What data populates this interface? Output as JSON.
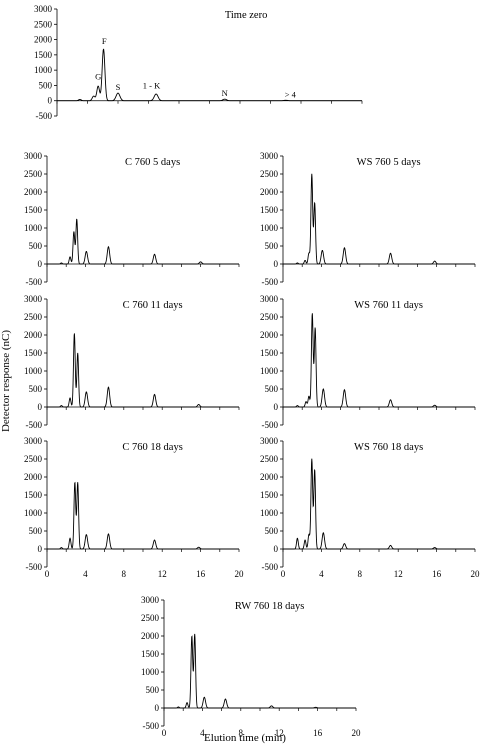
{
  "figure": {
    "ylabel": "Detector response (nC)",
    "xlabel": "Elution time (min)"
  },
  "chart_data": [
    {
      "type": "line",
      "title": "Time zero",
      "xlim": [
        0,
        20
      ],
      "ylim": [
        -500,
        3000
      ],
      "yticks": [
        3000,
        2500,
        2000,
        1500,
        1000,
        500,
        0,
        -500
      ],
      "xticks": [],
      "annotations": [
        {
          "text": "G",
          "x": 2.7,
          "y": 700
        },
        {
          "text": "F",
          "x": 3.1,
          "y": 1850
        },
        {
          "text": "S",
          "x": 4.0,
          "y": 350
        },
        {
          "text": "1 - K",
          "x": 6.2,
          "y": 400
        },
        {
          "text": "N",
          "x": 11.0,
          "y": 160
        },
        {
          "text": "> 4",
          "x": 15.3,
          "y": 100
        }
      ],
      "peaks": [
        {
          "x": 1.5,
          "y": 40
        },
        {
          "x": 2.4,
          "y": 150
        },
        {
          "x": 2.7,
          "y": 480
        },
        {
          "x": 3.05,
          "y": 1700
        },
        {
          "x": 4.0,
          "y": 250
        },
        {
          "x": 6.5,
          "y": 220
        },
        {
          "x": 11.0,
          "y": 50
        },
        {
          "x": 15.0,
          "y": 15
        }
      ]
    },
    {
      "type": "line",
      "title": "C 760 5 days",
      "xlim": [
        0,
        20
      ],
      "ylim": [
        -500,
        3000
      ],
      "yticks": [
        3000,
        2500,
        2000,
        1500,
        1000,
        500,
        0,
        -500
      ],
      "xticks": [],
      "peaks": [
        {
          "x": 1.5,
          "y": 30
        },
        {
          "x": 2.4,
          "y": 200
        },
        {
          "x": 2.8,
          "y": 900
        },
        {
          "x": 3.1,
          "y": 1250
        },
        {
          "x": 4.1,
          "y": 350
        },
        {
          "x": 6.4,
          "y": 480
        },
        {
          "x": 11.2,
          "y": 270
        },
        {
          "x": 16.0,
          "y": 60
        }
      ]
    },
    {
      "type": "line",
      "title": "WS 760 5 days",
      "xlim": [
        0,
        20
      ],
      "ylim": [
        -500,
        3000
      ],
      "yticks": [
        3000,
        2500,
        2000,
        1500,
        1000,
        500,
        0,
        -500
      ],
      "xticks": [],
      "peaks": [
        {
          "x": 1.5,
          "y": 30
        },
        {
          "x": 2.3,
          "y": 100
        },
        {
          "x": 2.7,
          "y": 300
        },
        {
          "x": 3.0,
          "y": 2500
        },
        {
          "x": 3.3,
          "y": 1700
        },
        {
          "x": 4.1,
          "y": 380
        },
        {
          "x": 6.4,
          "y": 450
        },
        {
          "x": 11.2,
          "y": 300
        },
        {
          "x": 15.8,
          "y": 80
        }
      ]
    },
    {
      "type": "line",
      "title": "C 760 11 days",
      "xlim": [
        0,
        20
      ],
      "ylim": [
        -500,
        3000
      ],
      "yticks": [
        3000,
        2500,
        2000,
        1500,
        1000,
        500,
        0,
        -500
      ],
      "xticks": [],
      "peaks": [
        {
          "x": 1.5,
          "y": 40
        },
        {
          "x": 2.4,
          "y": 250
        },
        {
          "x": 2.85,
          "y": 2050
        },
        {
          "x": 3.2,
          "y": 1500
        },
        {
          "x": 4.1,
          "y": 420
        },
        {
          "x": 6.4,
          "y": 550
        },
        {
          "x": 11.2,
          "y": 350
        },
        {
          "x": 15.8,
          "y": 70
        }
      ]
    },
    {
      "type": "line",
      "title": "WS 760 11 days",
      "xlim": [
        0,
        20
      ],
      "ylim": [
        -500,
        3000
      ],
      "yticks": [
        3000,
        2500,
        2000,
        1500,
        1000,
        500,
        0,
        -500
      ],
      "xticks": [],
      "peaks": [
        {
          "x": 1.5,
          "y": 40
        },
        {
          "x": 2.4,
          "y": 150
        },
        {
          "x": 2.7,
          "y": 300
        },
        {
          "x": 3.05,
          "y": 2600
        },
        {
          "x": 3.35,
          "y": 2200
        },
        {
          "x": 4.2,
          "y": 500
        },
        {
          "x": 6.4,
          "y": 480
        },
        {
          "x": 11.2,
          "y": 200
        },
        {
          "x": 15.8,
          "y": 50
        }
      ]
    },
    {
      "type": "line",
      "title": "C 760 18 days",
      "xlim": [
        0,
        20
      ],
      "ylim": [
        -500,
        3000
      ],
      "yticks": [
        3000,
        2500,
        2000,
        1500,
        1000,
        500,
        0,
        -500
      ],
      "xticks": [
        0,
        4,
        8,
        12,
        16,
        20
      ],
      "peaks": [
        {
          "x": 1.5,
          "y": 40
        },
        {
          "x": 2.4,
          "y": 300
        },
        {
          "x": 2.9,
          "y": 1850
        },
        {
          "x": 3.2,
          "y": 1850
        },
        {
          "x": 4.1,
          "y": 400
        },
        {
          "x": 6.4,
          "y": 420
        },
        {
          "x": 11.2,
          "y": 250
        },
        {
          "x": 15.8,
          "y": 50
        }
      ]
    },
    {
      "type": "line",
      "title": "WS 760 18 days",
      "xlim": [
        0,
        20
      ],
      "ylim": [
        -500,
        3000
      ],
      "yticks": [
        3000,
        2500,
        2000,
        1500,
        1000,
        500,
        0,
        -500
      ],
      "xticks": [
        0,
        4,
        8,
        12,
        16,
        20
      ],
      "peaks": [
        {
          "x": 1.5,
          "y": 300
        },
        {
          "x": 2.3,
          "y": 250
        },
        {
          "x": 2.7,
          "y": 400
        },
        {
          "x": 3.0,
          "y": 2500
        },
        {
          "x": 3.3,
          "y": 2200
        },
        {
          "x": 4.2,
          "y": 450
        },
        {
          "x": 6.4,
          "y": 150
        },
        {
          "x": 11.2,
          "y": 100
        },
        {
          "x": 15.8,
          "y": 40
        }
      ]
    },
    {
      "type": "line",
      "title": "RW 760 18 days",
      "xlim": [
        0,
        20
      ],
      "ylim": [
        -500,
        3000
      ],
      "yticks": [
        3000,
        2500,
        2000,
        1500,
        1000,
        500,
        0,
        -500
      ],
      "xticks": [
        0,
        4,
        8,
        12,
        16,
        20
      ],
      "peaks": [
        {
          "x": 1.5,
          "y": 30
        },
        {
          "x": 2.4,
          "y": 150
        },
        {
          "x": 2.9,
          "y": 2000
        },
        {
          "x": 3.2,
          "y": 2050
        },
        {
          "x": 4.2,
          "y": 300
        },
        {
          "x": 6.4,
          "y": 250
        },
        {
          "x": 11.2,
          "y": 60
        },
        {
          "x": 15.8,
          "y": 20
        }
      ]
    }
  ]
}
